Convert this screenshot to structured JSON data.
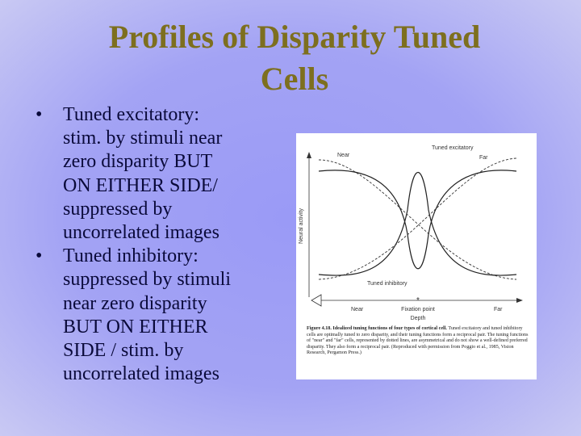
{
  "header": {
    "title_lines": [
      "Profiles of Disparity Tuned",
      "Cells"
    ]
  },
  "bullets": [
    {
      "lines": [
        "Tuned excitatory:",
        "stim. by stimuli near",
        "zero disparity BUT",
        "ON EITHER SIDE/",
        "suppressed by",
        "uncorrelated images"
      ]
    },
    {
      "lines": [
        "Tuned inhibitory:",
        "suppressed by stimuli",
        "near zero disparity",
        "BUT ON EITHER",
        "SIDE / stim. by",
        "uncorrelated images"
      ]
    }
  ],
  "figure": {
    "y_axis_label": "Neural activity",
    "curve_labels": {
      "near": "Near",
      "tuned_excitatory": "Tuned excitatory",
      "far": "Far",
      "tuned_inhibitory": "Tuned inhibitory"
    },
    "x_axis": {
      "near": "Near",
      "fixation_point": "Fixation point",
      "far": "Far",
      "label": "Depth"
    },
    "caption_heading": "Figure 4.18. Idealized tuning functions of four types of cortical cell.",
    "caption_body": "Tuned excitatory and tuned inhibitory cells are optimally tuned to zero disparity, and their tuning functions form a reciprocal pair. The tuning functions of \"near\" and \"far\" cells, represented by dotted lines, are asymmetrical and do not show a well-defined preferred disparity. They also form a reciprocal pair. (Reproduced with permission from Poggio et al., 1985, Vision Research, Pergamon Press.)"
  }
}
